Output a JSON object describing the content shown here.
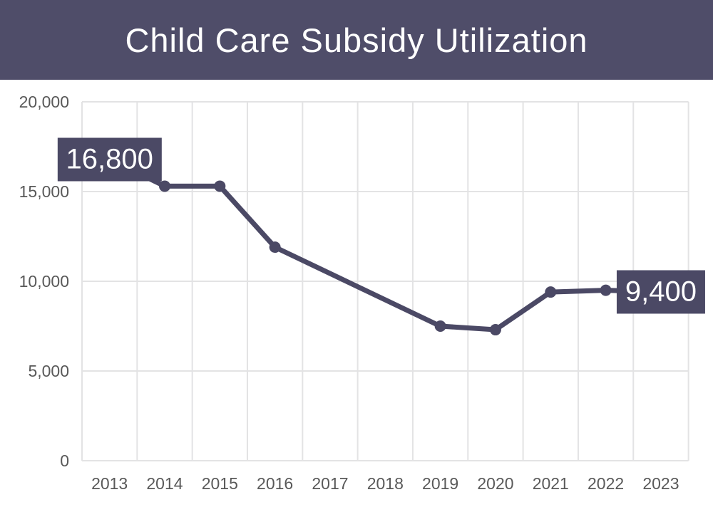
{
  "header": {
    "title": "Child Care Subsidy Utilization"
  },
  "colors": {
    "header_bg": "#4F4D69",
    "accent": "#4B4965",
    "gridline": "#E3E3E4",
    "axis_text": "#595959",
    "background": "#FFFFFF",
    "label_text": "#FFFFFF"
  },
  "chart_data": {
    "type": "line",
    "title": "Child Care Subsidy Utilization",
    "categories": [
      "2013",
      "2014",
      "2015",
      "2016",
      "2017",
      "2018",
      "2019",
      "2020",
      "2021",
      "2022",
      "2023"
    ],
    "values": [
      16800,
      15300,
      15300,
      11900,
      null,
      null,
      7500,
      7300,
      9400,
      9500,
      9400
    ],
    "xlabel": "",
    "ylabel": "",
    "ylim": [
      0,
      20000
    ],
    "y_ticks": [
      {
        "value": 0,
        "label": "0"
      },
      {
        "value": 5000,
        "label": "5,000"
      },
      {
        "value": 10000,
        "label": "10,000"
      },
      {
        "value": 15000,
        "label": "15,000"
      },
      {
        "value": 20000,
        "label": "20,000"
      }
    ],
    "grid": true,
    "legend": "none",
    "marker": "circle",
    "data_labels": [
      {
        "category": "2013",
        "text": "16,800"
      },
      {
        "category": "2023",
        "text": "9,400"
      }
    ]
  }
}
